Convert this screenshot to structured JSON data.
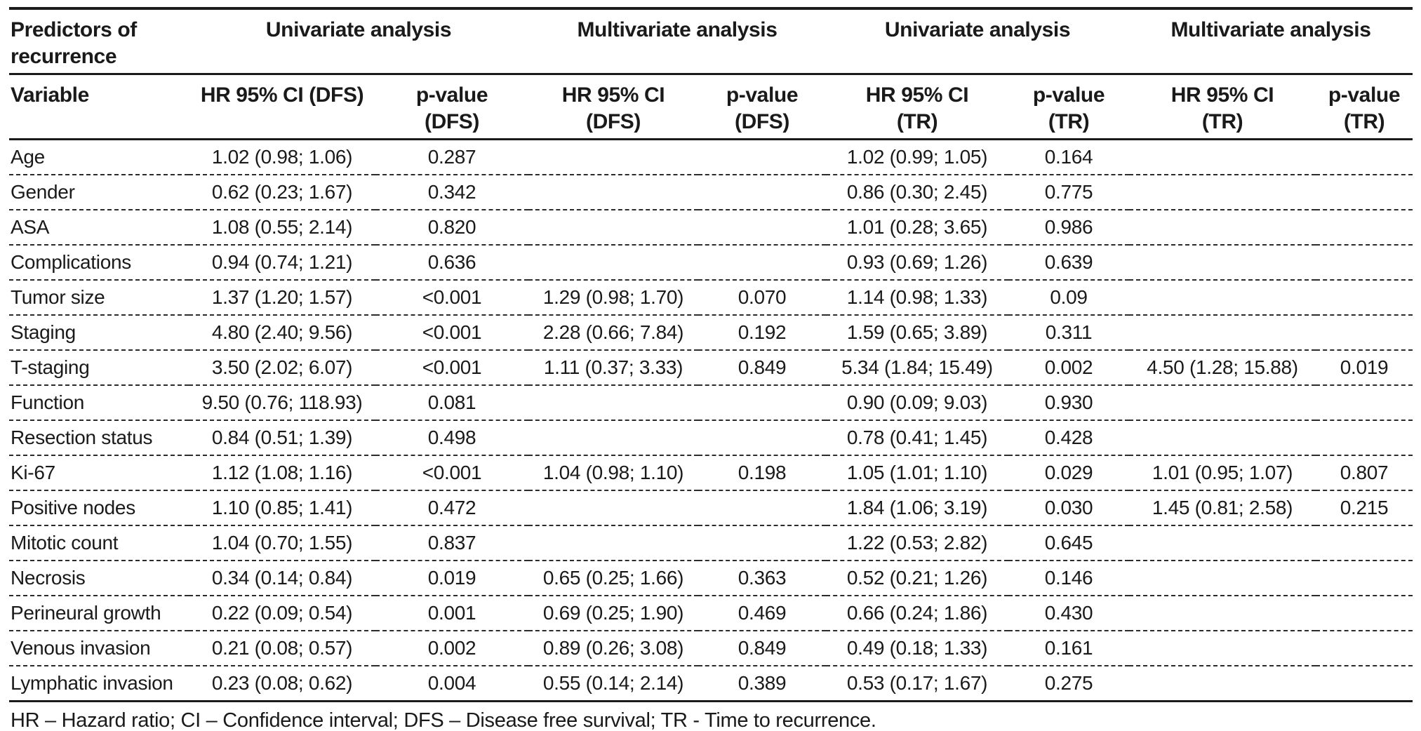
{
  "table": {
    "group_header": {
      "col1": "Predictors of recurrence",
      "groups": [
        "Univariate analysis",
        "Multivariate analysis",
        "Univariate analysis",
        "Multivariate analysis"
      ]
    },
    "columns": [
      {
        "label": "Variable",
        "sub": ""
      },
      {
        "label": "HR 95% CI (DFS)",
        "sub": ""
      },
      {
        "label": "p-value",
        "sub": "(DFS)"
      },
      {
        "label": "HR 95% CI",
        "sub": "(DFS)"
      },
      {
        "label": "p-value",
        "sub": "(DFS)"
      },
      {
        "label": "HR 95% CI",
        "sub": "(TR)"
      },
      {
        "label": "p-value",
        "sub": "(TR)"
      },
      {
        "label": "HR 95% CI",
        "sub": "(TR)"
      },
      {
        "label": "p-value",
        "sub": "(TR)"
      }
    ],
    "rows": [
      [
        "Age",
        "1.02 (0.98; 1.06)",
        "0.287",
        "",
        "",
        "1.02 (0.99; 1.05)",
        "0.164",
        "",
        ""
      ],
      [
        "Gender",
        "0.62 (0.23; 1.67)",
        "0.342",
        "",
        "",
        "0.86 (0.30; 2.45)",
        "0.775",
        "",
        ""
      ],
      [
        "ASA",
        "1.08 (0.55; 2.14)",
        "0.820",
        "",
        "",
        "1.01 (0.28; 3.65)",
        "0.986",
        "",
        ""
      ],
      [
        "Complications",
        "0.94 (0.74; 1.21)",
        "0.636",
        "",
        "",
        "0.93 (0.69; 1.26)",
        "0.639",
        "",
        ""
      ],
      [
        "Tumor size",
        "1.37 (1.20; 1.57)",
        "<0.001",
        "1.29 (0.98; 1.70)",
        "0.070",
        "1.14 (0.98; 1.33)",
        "0.09",
        "",
        ""
      ],
      [
        "Staging",
        "4.80 (2.40; 9.56)",
        "<0.001",
        "2.28 (0.66; 7.84)",
        "0.192",
        "1.59 (0.65; 3.89)",
        "0.311",
        "",
        ""
      ],
      [
        "T-staging",
        "3.50 (2.02; 6.07)",
        "<0.001",
        "1.11 (0.37; 3.33)",
        "0.849",
        "5.34 (1.84; 15.49)",
        "0.002",
        "4.50 (1.28; 15.88)",
        "0.019"
      ],
      [
        "Function",
        "9.50 (0.76; 118.93)",
        "0.081",
        "",
        "",
        "0.90 (0.09; 9.03)",
        "0.930",
        "",
        ""
      ],
      [
        "Resection status",
        "0.84 (0.51; 1.39)",
        "0.498",
        "",
        "",
        "0.78 (0.41; 1.45)",
        "0.428",
        "",
        ""
      ],
      [
        "Ki-67",
        "1.12 (1.08; 1.16)",
        "<0.001",
        "1.04 (0.98; 1.10)",
        "0.198",
        "1.05 (1.01; 1.10)",
        "0.029",
        "1.01 (0.95; 1.07)",
        "0.807"
      ],
      [
        "Positive nodes",
        "1.10 (0.85; 1.41)",
        "0.472",
        "",
        "",
        "1.84 (1.06; 3.19)",
        "0.030",
        "1.45 (0.81; 2.58)",
        "0.215"
      ],
      [
        "Mitotic count",
        "1.04 (0.70; 1.55)",
        "0.837",
        "",
        "",
        "1.22 (0.53; 2.82)",
        "0.645",
        "",
        ""
      ],
      [
        "Necrosis",
        "0.34 (0.14; 0.84)",
        "0.019",
        "0.65 (0.25; 1.66)",
        "0.363",
        "0.52 (0.21; 1.26)",
        "0.146",
        "",
        ""
      ],
      [
        "Perineural growth",
        "0.22 (0.09; 0.54)",
        "0.001",
        "0.69 (0.25; 1.90)",
        "0.469",
        "0.66 (0.24; 1.86)",
        "0.430",
        "",
        ""
      ],
      [
        "Venous invasion",
        "0.21 (0.08; 0.57)",
        "0.002",
        "0.89 (0.26; 3.08)",
        "0.849",
        "0.49 (0.18; 1.33)",
        "0.161",
        "",
        ""
      ],
      [
        "Lymphatic invasion",
        "0.23 (0.08; 0.62)",
        "0.004",
        "0.55 (0.14; 2.14)",
        "0.389",
        "0.53 (0.17; 1.67)",
        "0.275",
        "",
        ""
      ]
    ],
    "footnote": "HR – Hazard ratio; CI – Confidence interval; DFS – Disease free survival; TR - Time to recurrence."
  }
}
